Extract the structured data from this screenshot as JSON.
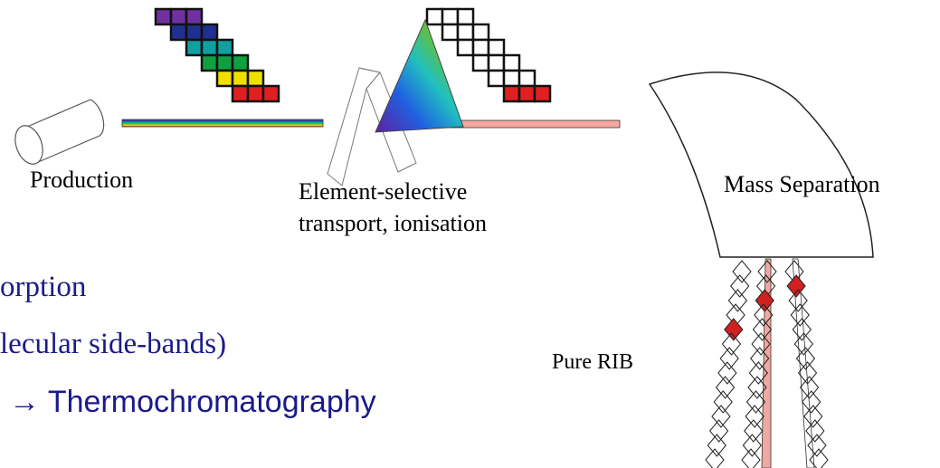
{
  "labels": {
    "production": "Production",
    "element_selective_1": "Element-selective",
    "element_selective_2": "transport, ionisation",
    "mass_separation": "Mass Separation",
    "pure_rib": "Pure RIB"
  },
  "bullets": [
    "orption",
    "lecular side-bands)",
    "→ Thermochromatography"
  ]
}
